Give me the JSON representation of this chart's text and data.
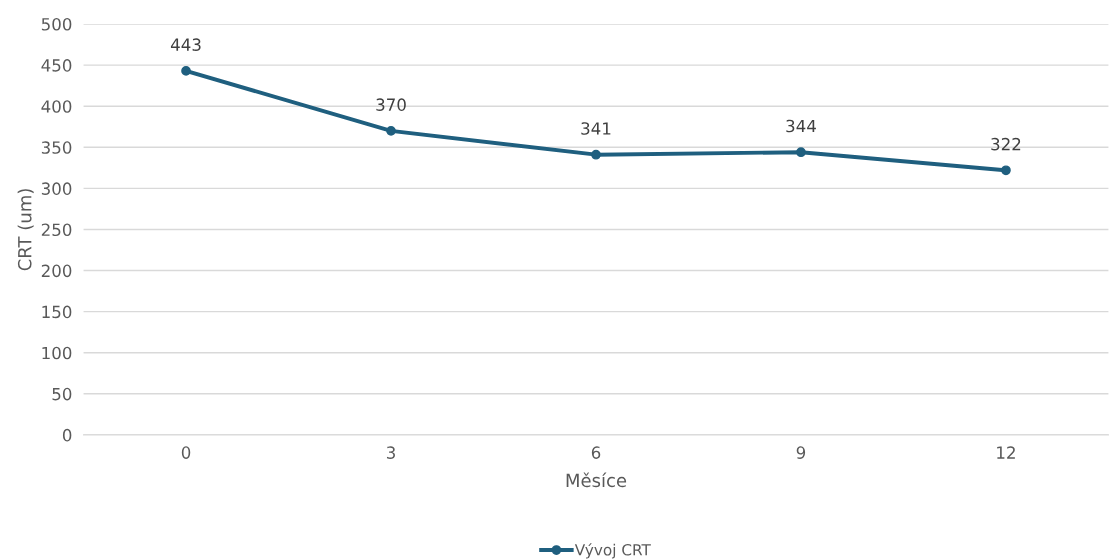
{
  "chart_data": {
    "type": "line",
    "xlabel": "Měsíce",
    "ylabel": "CRT (um)",
    "categories": [
      "0",
      "3",
      "6",
      "9",
      "12"
    ],
    "series": [
      {
        "name": "Vývoj CRT",
        "color": "#1f5f7f",
        "values": [
          443,
          370,
          341,
          344,
          322
        ]
      }
    ],
    "ylim": [
      0,
      500
    ],
    "yticks": [
      0,
      50,
      100,
      150,
      200,
      250,
      300,
      350,
      400,
      450,
      500
    ],
    "grid": "y",
    "legend": "bottom",
    "marker": "circle",
    "line_style": "solid",
    "data_labels": true
  }
}
